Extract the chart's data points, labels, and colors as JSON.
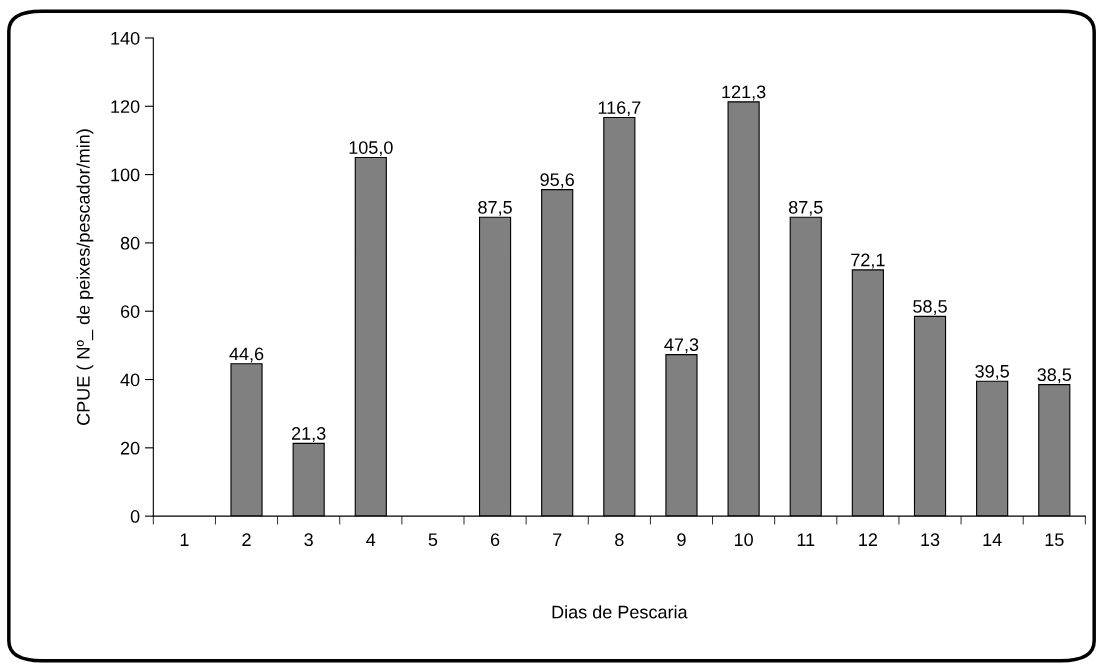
{
  "chart_data": {
    "type": "bar",
    "xlabel": "Dias de Pescaria",
    "ylabel": "CPUE ( Nº_ de peixes/pescador/min)",
    "categories": [
      "1",
      "2",
      "3",
      "4",
      "5",
      "6",
      "7",
      "8",
      "9",
      "10",
      "11",
      "12",
      "13",
      "14",
      "15"
    ],
    "values": [
      null,
      44.6,
      21.3,
      105.0,
      null,
      87.5,
      95.6,
      116.7,
      47.3,
      121.3,
      87.5,
      72.1,
      58.5,
      39.5,
      38.5
    ],
    "value_labels": [
      null,
      "44,6",
      "21,3",
      "105,0",
      null,
      "87,5",
      "95,6",
      "116,7",
      "47,3",
      "121,3",
      "87,5",
      "72,1",
      "58,5",
      "39,5",
      "38,5"
    ],
    "color": "#808080",
    "ylim": [
      0,
      140
    ],
    "yticks": [
      0,
      20,
      40,
      60,
      80,
      100,
      120,
      140
    ],
    "grid": false
  }
}
